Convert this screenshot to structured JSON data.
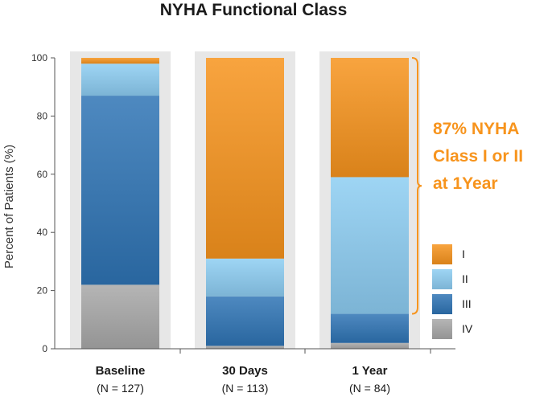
{
  "chart_data": {
    "type": "bar",
    "stacked": true,
    "title": "NYHA Functional Class",
    "ylabel": "Percent of Patients (%)",
    "xlabel": "",
    "ylim": [
      0,
      100
    ],
    "yticks": [
      0,
      20,
      40,
      60,
      80,
      100
    ],
    "categories": [
      "Baseline",
      "30 Days",
      "1 Year"
    ],
    "category_notes": [
      "(N = 127)",
      "(N = 113)",
      "(N = 84)"
    ],
    "series": [
      {
        "name": "IV",
        "values": [
          22,
          1,
          2
        ],
        "color": "#a8a8a8"
      },
      {
        "name": "III",
        "values": [
          65,
          17,
          10
        ],
        "color": "#2f74b5"
      },
      {
        "name": "II",
        "values": [
          11,
          13,
          47
        ],
        "color": "#8dcdf2"
      },
      {
        "name": "I",
        "values": [
          2,
          69,
          41
        ],
        "color": "#f7941d"
      }
    ],
    "legend_order": [
      "I",
      "II",
      "III",
      "IV"
    ],
    "legend_position": "bottom-right",
    "grid": false,
    "callout": {
      "text_lines": [
        "87% NYHA",
        "Class I or II",
        "at 1Year"
      ],
      "color": "#f7941d",
      "bracket_range": [
        12,
        100
      ],
      "target_category": "1 Year"
    }
  },
  "colors": {
    "panel_background": "#e7e7e7",
    "axis": "#555555",
    "text": "#1a1a1a"
  }
}
